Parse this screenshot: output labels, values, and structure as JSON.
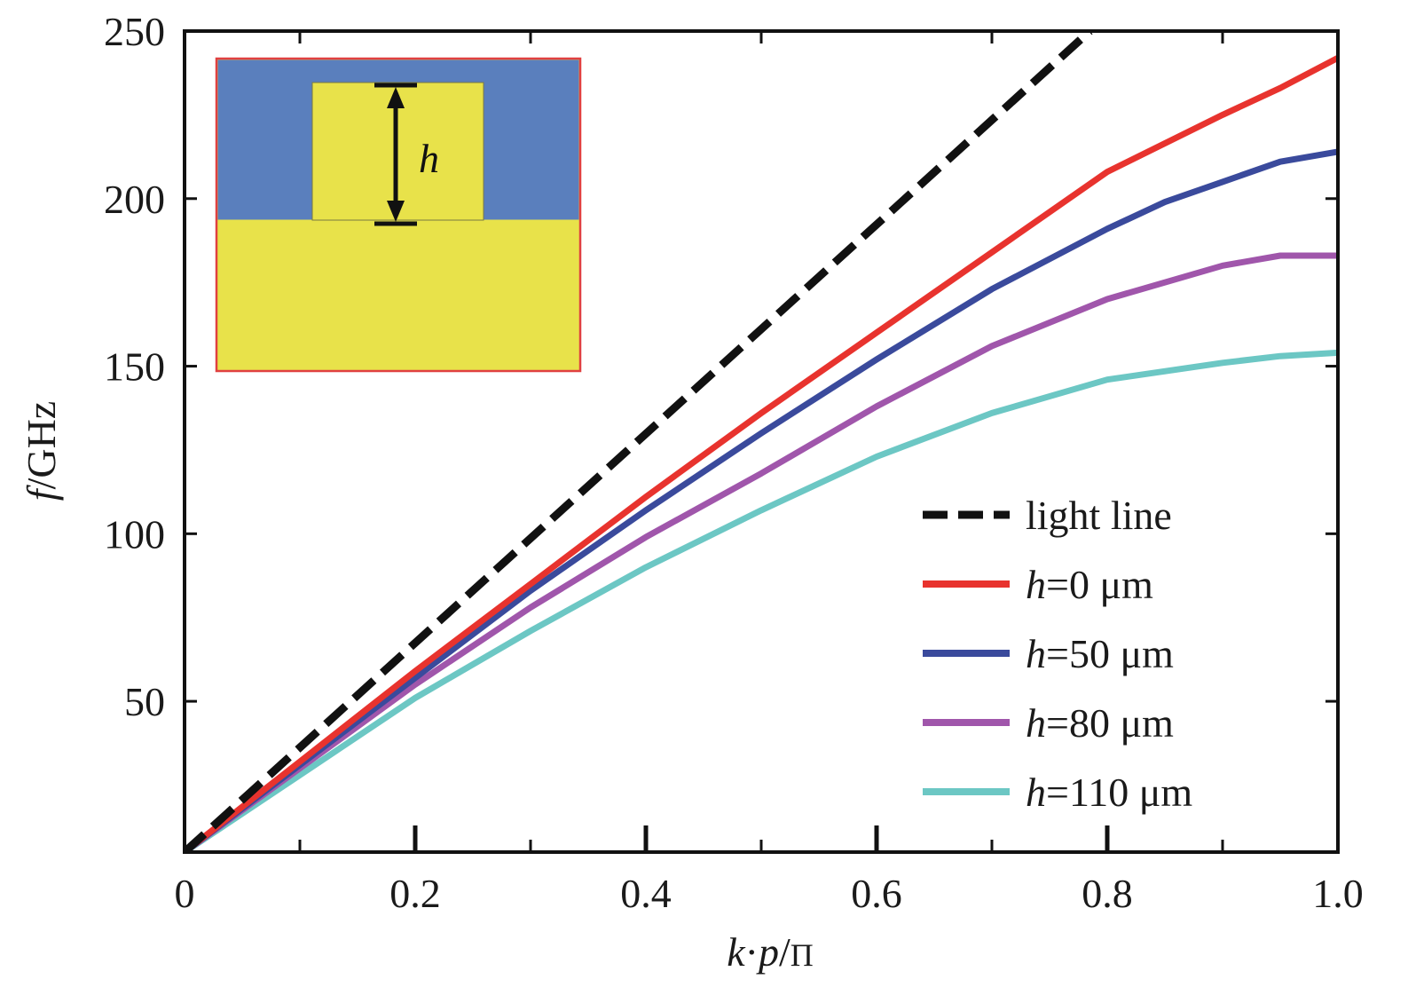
{
  "chart_data": {
    "type": "line",
    "title": "",
    "xlabel": {
      "var1": "k",
      "dot": "·",
      "var2": "p",
      "slash": "/",
      "const": "Π"
    },
    "ylabel": {
      "var": "f",
      "unit": "/GHz"
    },
    "xlim": [
      0,
      1.0
    ],
    "ylim": [
      5,
      250
    ],
    "x_tick_labels": [
      "0",
      "0.2",
      "0.4",
      "0.6",
      "0.8",
      "1.0"
    ],
    "x_ticks": [
      0,
      0.2,
      0.4,
      0.6,
      0.8,
      1.0
    ],
    "y_tick_labels": [
      "50",
      "100",
      "150",
      "200",
      "250"
    ],
    "y_ticks": [
      50,
      100,
      150,
      200,
      250
    ],
    "grid": false,
    "legend_position": "lower-right",
    "series": [
      {
        "name": "light line",
        "legend": {
          "italic": "",
          "rest": "light line"
        },
        "color": "#111111",
        "dashed": true,
        "x": [
          0,
          0.785
        ],
        "y": [
          5,
          250
        ]
      },
      {
        "name": "h=0 μm",
        "legend": {
          "italic": "h",
          "rest": "=0 μm"
        },
        "color": "#e8332e",
        "dashed": false,
        "x": [
          0,
          0.1,
          0.2,
          0.3,
          0.4,
          0.5,
          0.6,
          0.7,
          0.8,
          0.9,
          0.95,
          1.0
        ],
        "y": [
          5,
          32,
          59,
          85,
          111,
          136,
          160,
          184,
          208,
          225,
          233,
          242
        ]
      },
      {
        "name": "h=50 μm",
        "legend": {
          "italic": "h",
          "rest": "=50 μm"
        },
        "color": "#3a4a9c",
        "dashed": false,
        "x": [
          0,
          0.1,
          0.2,
          0.3,
          0.4,
          0.5,
          0.6,
          0.7,
          0.8,
          0.85,
          0.9,
          0.95,
          1.0
        ],
        "y": [
          5,
          31,
          57,
          83,
          107,
          130,
          152,
          173,
          191,
          199,
          205,
          211,
          214
        ]
      },
      {
        "name": "h=80 μm",
        "legend": {
          "italic": "h",
          "rest": "=80 μm"
        },
        "color": "#a056ab",
        "dashed": false,
        "x": [
          0,
          0.1,
          0.2,
          0.3,
          0.4,
          0.5,
          0.6,
          0.7,
          0.8,
          0.9,
          0.95,
          1.0
        ],
        "y": [
          5,
          30,
          55,
          78,
          99,
          118,
          138,
          156,
          170,
          180,
          183,
          183
        ]
      },
      {
        "name": "h=110 μm",
        "legend": {
          "italic": "h",
          "rest": "=110 μm"
        },
        "color": "#6cc7c4",
        "dashed": false,
        "x": [
          0,
          0.1,
          0.2,
          0.3,
          0.4,
          0.5,
          0.6,
          0.7,
          0.8,
          0.9,
          0.95,
          1.0
        ],
        "y": [
          5,
          28,
          51,
          71,
          90,
          107,
          123,
          136,
          146,
          151,
          153,
          154
        ]
      }
    ],
    "inset": {
      "label": "h",
      "colors": {
        "dielectric": "#5a7fbd",
        "metal": "#e8e24a",
        "border": "#e04040"
      }
    }
  }
}
